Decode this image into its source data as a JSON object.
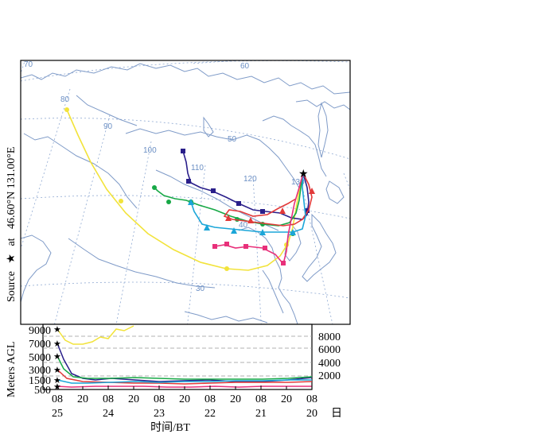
{
  "map": {
    "source_label": "Source",
    "source_star": "★",
    "source_at": "at",
    "source_coords": "46.60°N  131.00°E",
    "graticule_labels": [
      "70",
      "60",
      "80",
      "90",
      "100",
      "110",
      "120",
      "130",
      "50",
      "40",
      "30"
    ],
    "colors": {
      "coast": "#7f9bc8",
      "graticule": "#7f9bc8",
      "yellow": "#f2e33b",
      "navy": "#2a1f8a",
      "green": "#17a846",
      "red": "#e23a3a",
      "cyan": "#1ba6d8",
      "magenta": "#e8307a"
    }
  },
  "profile": {
    "axis_title": "Meters  AGL",
    "left_ticks": [
      "9000",
      "7000",
      "5000",
      "3000",
      "1500",
      "500"
    ],
    "right_ticks": [
      "8000",
      "6000",
      "4000",
      "2000"
    ],
    "start_heights_m": [
      9000,
      7000,
      5000,
      3000,
      1500,
      500
    ],
    "x_ticks_hour": [
      "08",
      "20",
      "08",
      "20",
      "08",
      "20",
      "08",
      "20",
      "08",
      "20",
      "08"
    ],
    "x_ticks_day": [
      "25",
      "24",
      "23",
      "22",
      "21",
      "20"
    ],
    "day_unit": "日",
    "xlabel": "时间/BT"
  }
}
